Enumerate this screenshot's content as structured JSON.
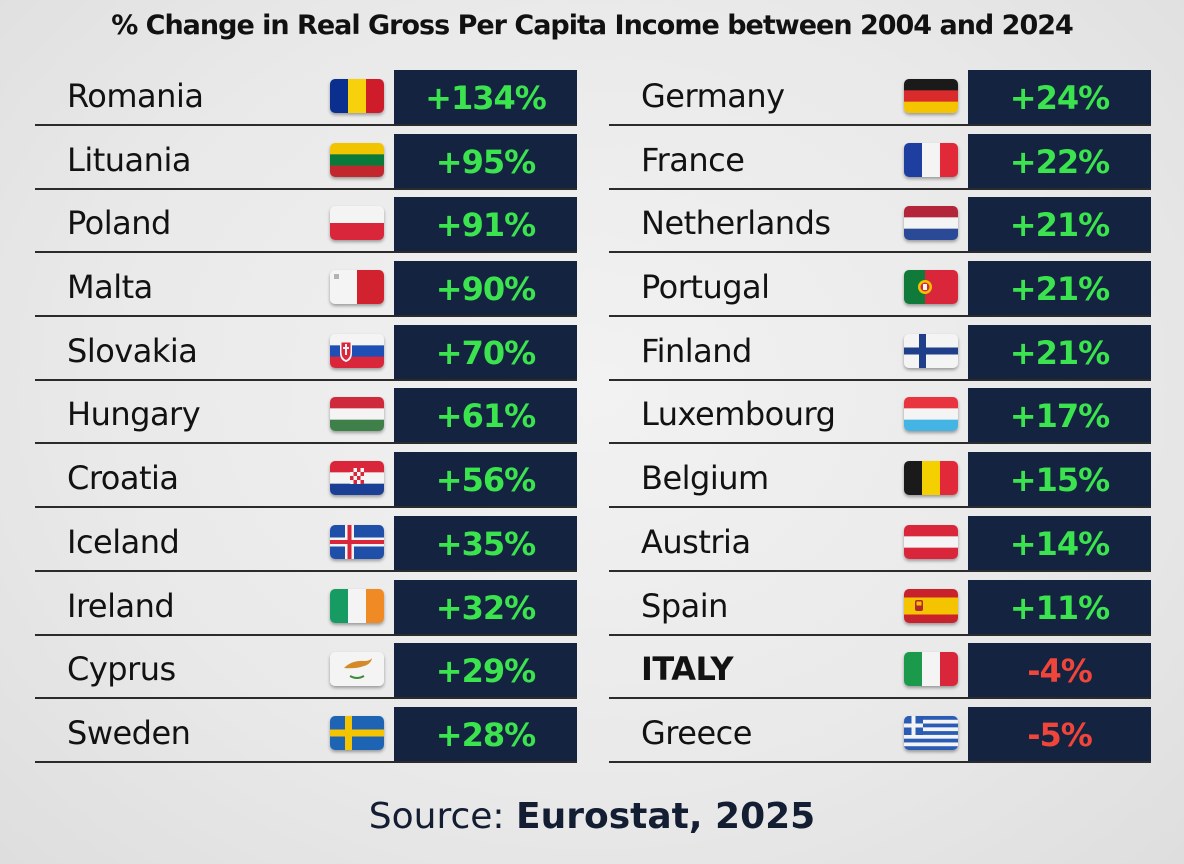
{
  "chart_data": {
    "type": "table",
    "title": "% Change in Real Gross Per Capita Income between 2004 and 2024",
    "columns": [
      {
        "rows": [
          {
            "country": "Romania",
            "flag": "romania-flag",
            "value": 134,
            "label": "+134%"
          },
          {
            "country": "Lituania",
            "flag": "lithuania-flag",
            "value": 95,
            "label": "+95%"
          },
          {
            "country": "Poland",
            "flag": "poland-flag",
            "value": 91,
            "label": "+91%"
          },
          {
            "country": "Malta",
            "flag": "malta-flag",
            "value": 90,
            "label": "+90%"
          },
          {
            "country": "Slovakia",
            "flag": "slovakia-flag",
            "value": 70,
            "label": "+70%"
          },
          {
            "country": "Hungary",
            "flag": "hungary-flag",
            "value": 61,
            "label": "+61%"
          },
          {
            "country": "Croatia",
            "flag": "croatia-flag",
            "value": 56,
            "label": "+56%"
          },
          {
            "country": "Iceland",
            "flag": "iceland-flag",
            "value": 35,
            "label": "+35%"
          },
          {
            "country": "Ireland",
            "flag": "ireland-flag",
            "value": 32,
            "label": "+32%"
          },
          {
            "country": "Cyprus",
            "flag": "cyprus-flag",
            "value": 29,
            "label": "+29%"
          },
          {
            "country": "Sweden",
            "flag": "sweden-flag",
            "value": 28,
            "label": "+28%"
          }
        ]
      },
      {
        "rows": [
          {
            "country": "Germany",
            "flag": "germany-flag",
            "value": 24,
            "label": "+24%"
          },
          {
            "country": "France",
            "flag": "france-flag",
            "value": 22,
            "label": "+22%"
          },
          {
            "country": "Netherlands",
            "flag": "netherlands-flag",
            "value": 21,
            "label": "+21%"
          },
          {
            "country": "Portugal",
            "flag": "portugal-flag",
            "value": 21,
            "label": "+21%"
          },
          {
            "country": "Finland",
            "flag": "finland-flag",
            "value": 21,
            "label": "+21%"
          },
          {
            "country": "Luxembourg",
            "flag": "luxembourg-flag",
            "value": 17,
            "label": "+17%"
          },
          {
            "country": "Belgium",
            "flag": "belgium-flag",
            "value": 15,
            "label": "+15%"
          },
          {
            "country": "Austria",
            "flag": "austria-flag",
            "value": 14,
            "label": "+14%"
          },
          {
            "country": "Spain",
            "flag": "spain-flag",
            "value": 11,
            "label": "+11%"
          },
          {
            "country": "ITALY",
            "flag": "italy-flag",
            "value": -4,
            "label": "-4%",
            "emphasis": true
          },
          {
            "country": "Greece",
            "flag": "greece-flag",
            "value": -5,
            "label": "-5%"
          }
        ]
      }
    ]
  },
  "source": {
    "prefix": "Source: ",
    "name": "Eurostat, 2025"
  },
  "colors": {
    "value_cell_bg": "#14233f",
    "positive": "#3be34f",
    "negative": "#f0453a",
    "text": "#121212"
  }
}
